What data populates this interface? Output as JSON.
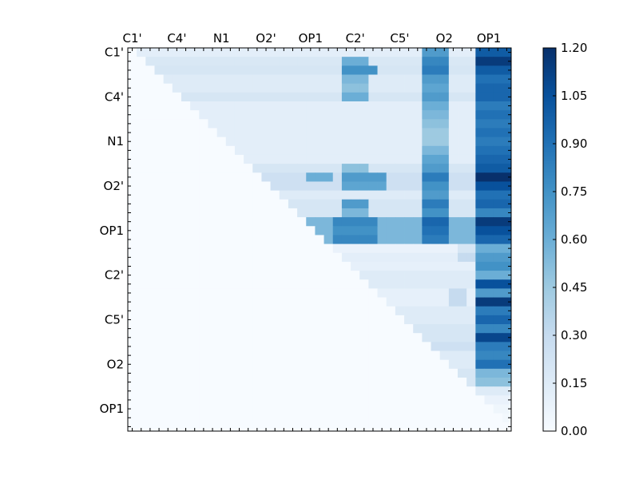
{
  "chart_data": {
    "type": "heatmap",
    "title": "",
    "xlabel": "",
    "ylabel": "",
    "n": 43,
    "x_tick_labels": [
      "C1'",
      "C4'",
      "N1",
      "O2'",
      "OP1",
      "C2'",
      "C5'",
      "O2",
      "OP1"
    ],
    "x_tick_indices": [
      0,
      5,
      10,
      15,
      20,
      25,
      30,
      35,
      40
    ],
    "y_tick_labels": [
      "C1'",
      "C4'",
      "N1",
      "O2'",
      "OP1",
      "C2'",
      "C5'",
      "O2",
      "OP1"
    ],
    "y_tick_indices": [
      0,
      5,
      10,
      15,
      20,
      25,
      30,
      35,
      40
    ],
    "colormap": "Blues",
    "vmin": 0.0,
    "vmax": 1.2,
    "colorbar_ticks": [
      "0.00",
      "0.15",
      "0.30",
      "0.45",
      "0.60",
      "0.75",
      "0.90",
      "1.05",
      "1.20"
    ],
    "lower_triangle_value": 0.0,
    "row_profiles": [
      {
        "row": 0,
        "base": 0.12,
        "high": [
          [
            33,
            35,
            0.7
          ],
          [
            39,
            42,
            1.0
          ]
        ]
      },
      {
        "row": 1,
        "base": 0.18,
        "high": [
          [
            24,
            26,
            0.6
          ],
          [
            33,
            35,
            0.8
          ],
          [
            39,
            42,
            1.15
          ]
        ]
      },
      {
        "row": 2,
        "base": 0.2,
        "high": [
          [
            24,
            27,
            0.75
          ],
          [
            33,
            35,
            0.85
          ],
          [
            39,
            42,
            1.0
          ]
        ]
      },
      {
        "row": 3,
        "base": 0.15,
        "high": [
          [
            24,
            26,
            0.55
          ],
          [
            33,
            35,
            0.7
          ],
          [
            39,
            42,
            0.9
          ]
        ]
      },
      {
        "row": 4,
        "base": 0.15,
        "high": [
          [
            24,
            26,
            0.5
          ],
          [
            33,
            35,
            0.65
          ],
          [
            39,
            42,
            0.95
          ]
        ]
      },
      {
        "row": 5,
        "base": 0.2,
        "high": [
          [
            24,
            26,
            0.6
          ],
          [
            33,
            35,
            0.7
          ],
          [
            39,
            42,
            0.95
          ]
        ]
      },
      {
        "row": 6,
        "base": 0.12,
        "high": [
          [
            33,
            35,
            0.6
          ],
          [
            39,
            42,
            0.85
          ]
        ]
      },
      {
        "row": 7,
        "base": 0.12,
        "high": [
          [
            33,
            35,
            0.55
          ],
          [
            39,
            42,
            0.9
          ]
        ]
      },
      {
        "row": 8,
        "base": 0.12,
        "high": [
          [
            33,
            35,
            0.5
          ],
          [
            39,
            42,
            0.85
          ]
        ]
      },
      {
        "row": 9,
        "base": 0.12,
        "high": [
          [
            33,
            35,
            0.45
          ],
          [
            39,
            42,
            0.9
          ]
        ]
      },
      {
        "row": 10,
        "base": 0.12,
        "high": [
          [
            33,
            35,
            0.45
          ],
          [
            39,
            42,
            0.85
          ]
        ]
      },
      {
        "row": 11,
        "base": 0.12,
        "high": [
          [
            33,
            35,
            0.55
          ],
          [
            39,
            42,
            0.9
          ]
        ]
      },
      {
        "row": 12,
        "base": 0.12,
        "high": [
          [
            33,
            35,
            0.65
          ],
          [
            39,
            42,
            0.95
          ]
        ]
      },
      {
        "row": 13,
        "base": 0.2,
        "high": [
          [
            24,
            26,
            0.5
          ],
          [
            33,
            35,
            0.7
          ],
          [
            39,
            42,
            1.0
          ]
        ]
      },
      {
        "row": 14,
        "base": 0.25,
        "high": [
          [
            20,
            22,
            0.6
          ],
          [
            24,
            28,
            0.7
          ],
          [
            33,
            35,
            0.85
          ],
          [
            39,
            42,
            1.2
          ]
        ]
      },
      {
        "row": 15,
        "base": 0.25,
        "high": [
          [
            24,
            28,
            0.65
          ],
          [
            33,
            35,
            0.75
          ],
          [
            39,
            42,
            1.05
          ]
        ]
      },
      {
        "row": 16,
        "base": 0.15,
        "high": [
          [
            33,
            35,
            0.7
          ],
          [
            39,
            42,
            0.9
          ]
        ]
      },
      {
        "row": 17,
        "base": 0.2,
        "high": [
          [
            24,
            26,
            0.7
          ],
          [
            33,
            35,
            0.85
          ],
          [
            39,
            42,
            0.95
          ]
        ]
      },
      {
        "row": 18,
        "base": 0.2,
        "high": [
          [
            24,
            26,
            0.55
          ],
          [
            33,
            35,
            0.75
          ],
          [
            39,
            42,
            0.8
          ]
        ]
      },
      {
        "row": 19,
        "base": 0.55,
        "high": [
          [
            23,
            27,
            0.8
          ],
          [
            33,
            35,
            0.95
          ],
          [
            39,
            42,
            1.15
          ]
        ]
      },
      {
        "row": 20,
        "base": 0.55,
        "high": [
          [
            23,
            27,
            0.75
          ],
          [
            33,
            35,
            0.9
          ],
          [
            39,
            42,
            1.05
          ]
        ]
      },
      {
        "row": 21,
        "base": 0.55,
        "high": [
          [
            23,
            27,
            0.8
          ],
          [
            33,
            35,
            0.85
          ],
          [
            39,
            42,
            0.95
          ]
        ]
      },
      {
        "row": 22,
        "base": 0.08,
        "high": [
          [
            37,
            38,
            0.2
          ],
          [
            39,
            42,
            0.6
          ]
        ]
      },
      {
        "row": 23,
        "base": 0.12,
        "high": [
          [
            37,
            38,
            0.3
          ],
          [
            39,
            42,
            0.7
          ]
        ]
      },
      {
        "row": 24,
        "base": 0.1,
        "high": [
          [
            39,
            42,
            0.75
          ]
        ]
      },
      {
        "row": 25,
        "base": 0.15,
        "high": [
          [
            39,
            42,
            0.6
          ]
        ]
      },
      {
        "row": 26,
        "base": 0.15,
        "high": [
          [
            39,
            42,
            1.05
          ]
        ]
      },
      {
        "row": 27,
        "base": 0.1,
        "high": [
          [
            36,
            37,
            0.3
          ],
          [
            39,
            42,
            0.7
          ]
        ]
      },
      {
        "row": 28,
        "base": 0.1,
        "high": [
          [
            36,
            37,
            0.3
          ],
          [
            39,
            42,
            1.15
          ]
        ]
      },
      {
        "row": 29,
        "base": 0.15,
        "high": [
          [
            39,
            42,
            0.85
          ]
        ]
      },
      {
        "row": 30,
        "base": 0.15,
        "high": [
          [
            39,
            42,
            0.95
          ]
        ]
      },
      {
        "row": 31,
        "base": 0.2,
        "high": [
          [
            39,
            42,
            0.8
          ]
        ]
      },
      {
        "row": 32,
        "base": 0.2,
        "high": [
          [
            39,
            42,
            1.1
          ]
        ]
      },
      {
        "row": 33,
        "base": 0.25,
        "high": [
          [
            39,
            42,
            0.85
          ]
        ]
      },
      {
        "row": 34,
        "base": 0.15,
        "high": [
          [
            39,
            42,
            0.8
          ]
        ]
      },
      {
        "row": 35,
        "base": 0.15,
        "high": [
          [
            39,
            42,
            0.9
          ]
        ]
      },
      {
        "row": 36,
        "base": 0.2,
        "high": [
          [
            39,
            42,
            0.55
          ]
        ]
      },
      {
        "row": 37,
        "base": 0.2,
        "high": [
          [
            39,
            42,
            0.5
          ]
        ]
      },
      {
        "row": 38,
        "base": 0.15,
        "high": []
      },
      {
        "row": 39,
        "base": 0.08,
        "high": []
      },
      {
        "row": 40,
        "base": 0.05,
        "high": []
      },
      {
        "row": 41,
        "base": 0.03,
        "high": []
      },
      {
        "row": 42,
        "base": 0.0,
        "high": []
      }
    ]
  }
}
